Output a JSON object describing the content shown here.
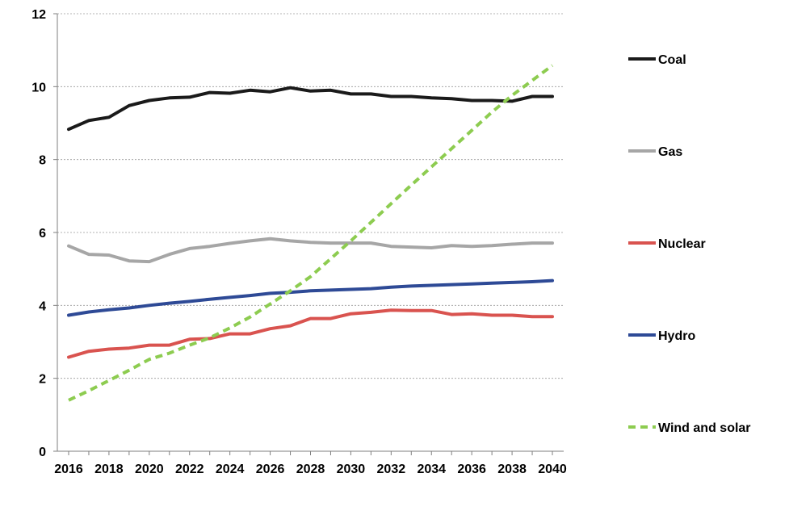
{
  "chart_data": {
    "type": "line",
    "title": "",
    "xlabel": "",
    "ylabel": "",
    "xlim": [
      2016,
      2040
    ],
    "ylim": [
      0,
      12
    ],
    "x_ticks": [
      2016,
      2018,
      2020,
      2022,
      2024,
      2026,
      2028,
      2030,
      2032,
      2034,
      2036,
      2038,
      2040
    ],
    "y_ticks": [
      0,
      2,
      4,
      6,
      8,
      10,
      12
    ],
    "grid": "horizontal dashed",
    "legend_position": "right",
    "x": [
      2016,
      2017,
      2018,
      2019,
      2020,
      2021,
      2022,
      2023,
      2024,
      2025,
      2026,
      2027,
      2028,
      2029,
      2030,
      2031,
      2032,
      2033,
      2034,
      2035,
      2036,
      2037,
      2038,
      2039,
      2040
    ],
    "series": [
      {
        "name": "Coal",
        "color": "#1a1a1a",
        "dashed": false,
        "values": [
          8.83,
          9.07,
          9.16,
          9.48,
          9.62,
          9.69,
          9.71,
          9.84,
          9.82,
          9.9,
          9.86,
          9.97,
          9.88,
          9.9,
          9.8,
          9.8,
          9.73,
          9.73,
          9.69,
          9.67,
          9.62,
          9.62,
          9.6,
          9.73,
          9.73
        ]
      },
      {
        "name": "Gas",
        "color": "#a6a6a6",
        "dashed": false,
        "values": [
          5.63,
          5.4,
          5.38,
          5.22,
          5.2,
          5.4,
          5.56,
          5.62,
          5.7,
          5.77,
          5.83,
          5.77,
          5.73,
          5.71,
          5.71,
          5.71,
          5.62,
          5.6,
          5.58,
          5.64,
          5.62,
          5.64,
          5.68,
          5.71,
          5.71
        ]
      },
      {
        "name": "Nuclear",
        "color": "#d9534f",
        "dashed": false,
        "values": [
          2.58,
          2.74,
          2.8,
          2.83,
          2.91,
          2.91,
          3.07,
          3.09,
          3.22,
          3.22,
          3.36,
          3.44,
          3.64,
          3.64,
          3.77,
          3.81,
          3.87,
          3.86,
          3.86,
          3.75,
          3.77,
          3.73,
          3.73,
          3.69,
          3.69
        ]
      },
      {
        "name": "Hydro",
        "color": "#2e4a96",
        "dashed": false,
        "values": [
          3.73,
          3.82,
          3.88,
          3.93,
          4.0,
          4.06,
          4.11,
          4.17,
          4.22,
          4.27,
          4.33,
          4.36,
          4.4,
          4.42,
          4.44,
          4.46,
          4.5,
          4.53,
          4.55,
          4.57,
          4.59,
          4.61,
          4.63,
          4.65,
          4.68
        ]
      },
      {
        "name": "Wind and solar",
        "color": "#8dcc50",
        "dashed": true,
        "values": [
          1.4,
          1.66,
          1.94,
          2.22,
          2.52,
          2.69,
          2.91,
          3.11,
          3.38,
          3.68,
          4.04,
          4.4,
          4.79,
          5.28,
          5.77,
          6.28,
          6.79,
          7.3,
          7.8,
          8.3,
          8.8,
          9.3,
          9.76,
          10.17,
          10.58
        ]
      }
    ]
  }
}
